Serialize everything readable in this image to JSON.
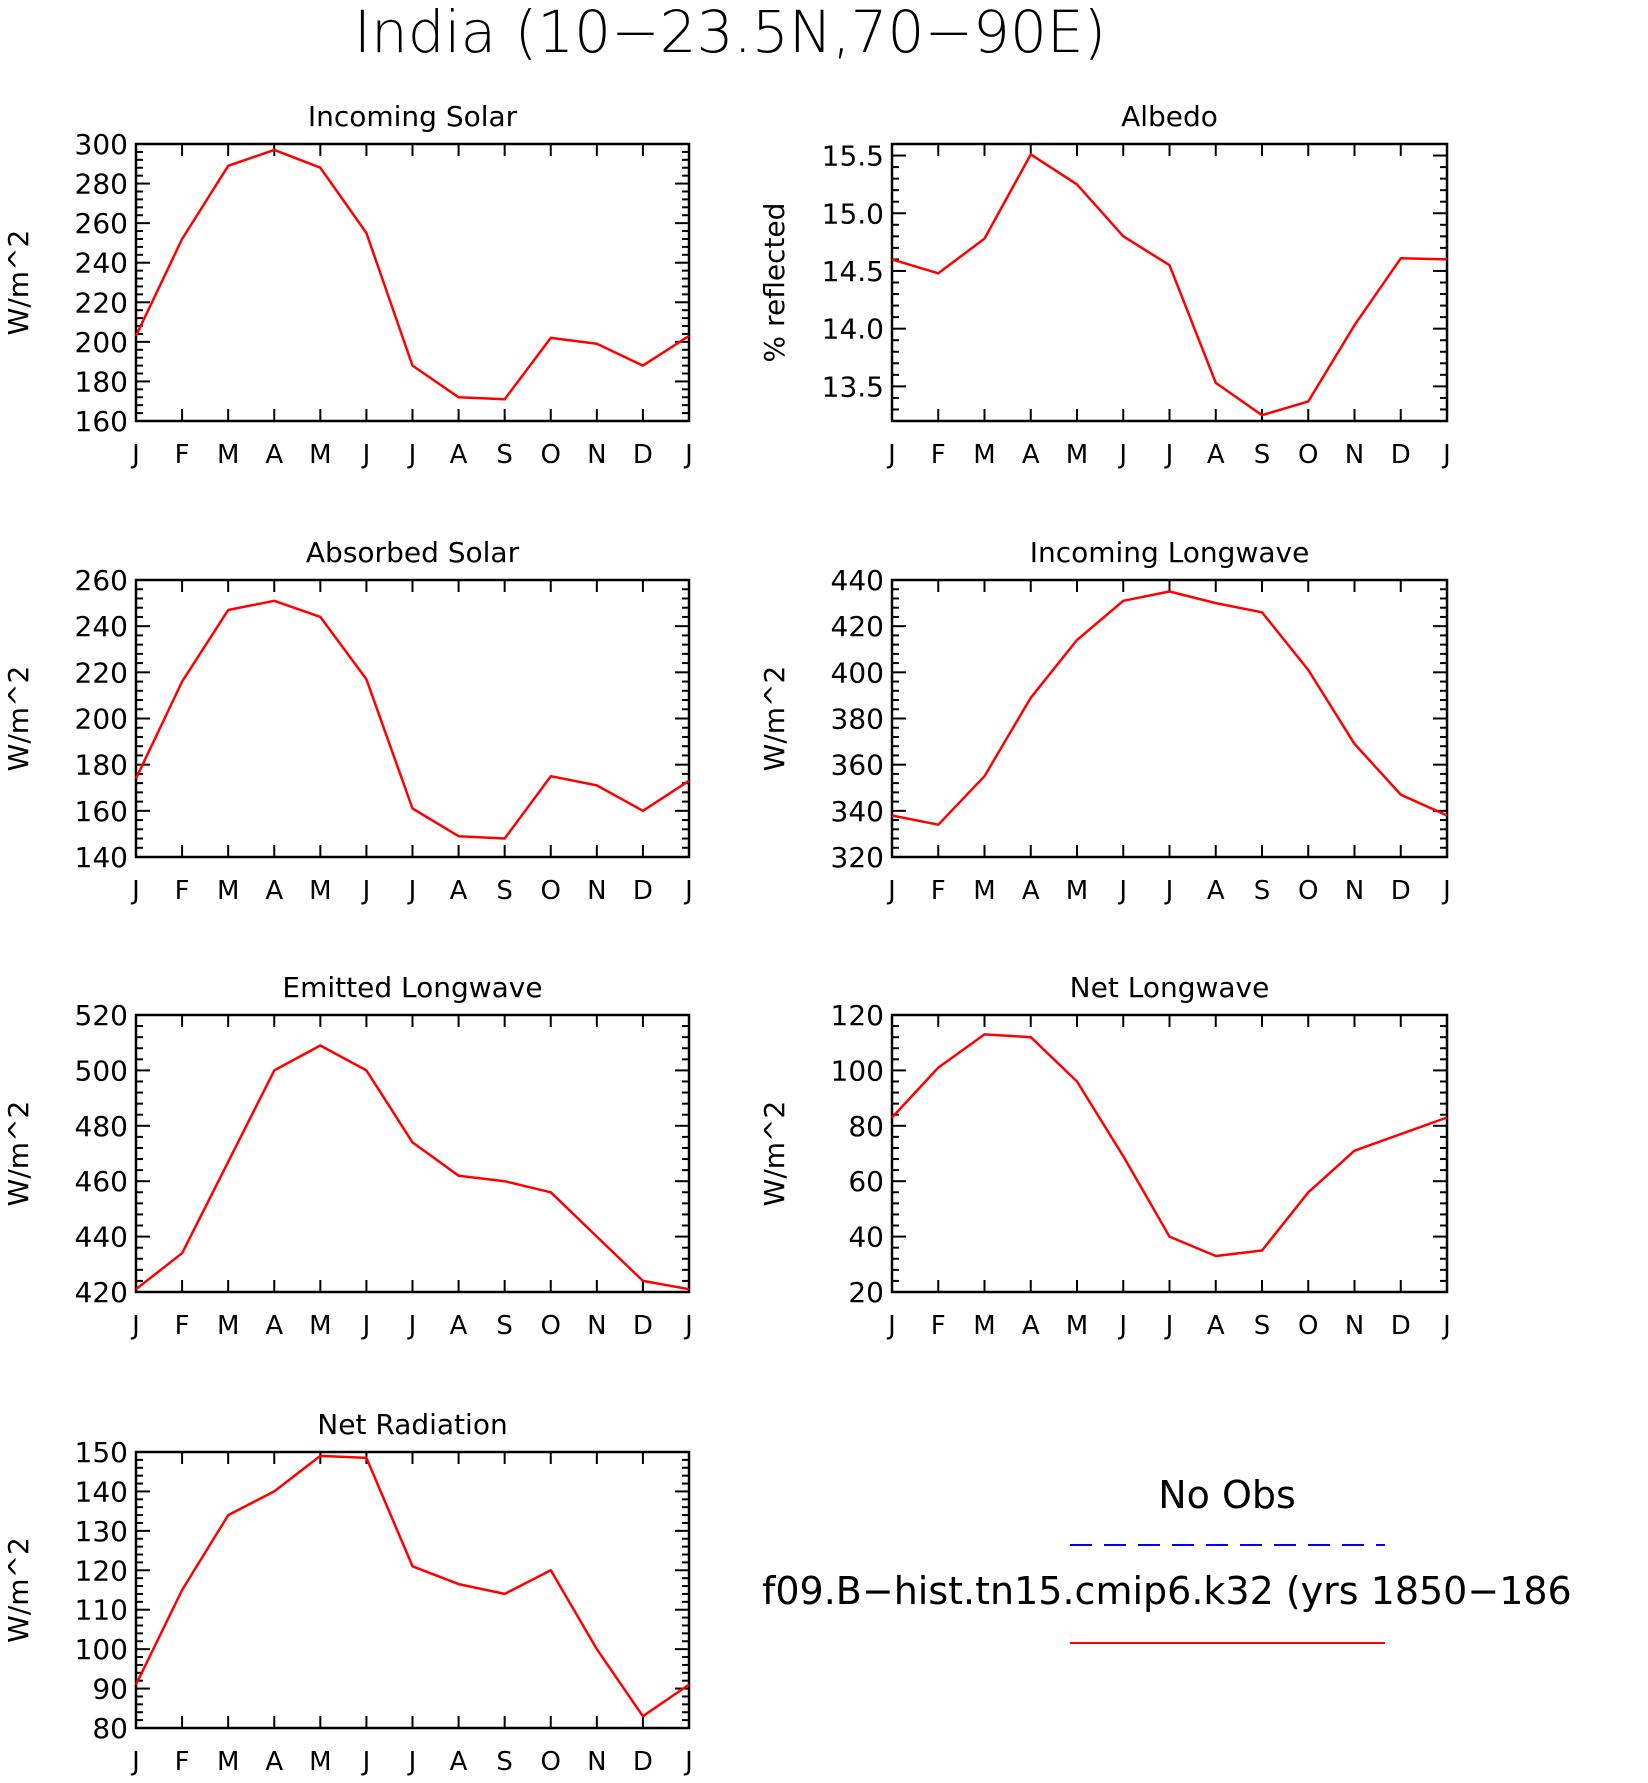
{
  "figure_title": "India (10−23.5N,70−90E)",
  "months": [
    "J",
    "F",
    "M",
    "A",
    "M",
    "J",
    "J",
    "A",
    "S",
    "O",
    "N",
    "D",
    "J"
  ],
  "colors": {
    "model": "#ff0000",
    "obs": "#0000ff",
    "axis": "#000000"
  },
  "legend": {
    "obs_label": "No Obs",
    "model_label": "f09.B−hist.tn15.cmip6.k32 (yrs 1850−186"
  },
  "chart_data": [
    {
      "type": "line",
      "title": "Incoming Solar",
      "ylabel": "W/m^2",
      "ylim": [
        160,
        300
      ],
      "yticks": [
        160,
        180,
        200,
        220,
        240,
        260,
        280,
        300
      ],
      "ytick_labels": [
        "160",
        "180",
        "200",
        "220",
        "240",
        "260",
        "280",
        "300"
      ],
      "x": [
        "J",
        "F",
        "M",
        "A",
        "M",
        "J",
        "J",
        "A",
        "S",
        "O",
        "N",
        "D",
        "J"
      ],
      "values": [
        203,
        252,
        289,
        297,
        288,
        255,
        188,
        172,
        171,
        202,
        199,
        188,
        203
      ]
    },
    {
      "type": "line",
      "title": "Albedo",
      "ylabel": "% reflected",
      "ylim": [
        13.2,
        15.6
      ],
      "yticks": [
        13.5,
        14.0,
        14.5,
        15.0,
        15.5
      ],
      "ytick_labels": [
        "13.5",
        "14.0",
        "14.5",
        "15.0",
        "15.5"
      ],
      "x": [
        "J",
        "F",
        "M",
        "A",
        "M",
        "J",
        "J",
        "A",
        "S",
        "O",
        "N",
        "D",
        "J"
      ],
      "values": [
        14.6,
        14.48,
        14.78,
        15.51,
        15.25,
        14.8,
        14.55,
        13.53,
        13.25,
        13.37,
        14.03,
        14.61,
        14.6
      ]
    },
    {
      "type": "line",
      "title": "Absorbed Solar",
      "ylabel": "W/m^2",
      "ylim": [
        140,
        260
      ],
      "yticks": [
        140,
        160,
        180,
        200,
        220,
        240,
        260
      ],
      "ytick_labels": [
        "140",
        "160",
        "180",
        "200",
        "220",
        "240",
        "260"
      ],
      "x": [
        "J",
        "F",
        "M",
        "A",
        "M",
        "J",
        "J",
        "A",
        "S",
        "O",
        "N",
        "D",
        "J"
      ],
      "values": [
        174,
        216,
        247,
        251,
        244,
        217,
        161,
        149,
        148,
        175,
        171,
        160,
        173
      ]
    },
    {
      "type": "line",
      "title": "Incoming Longwave",
      "ylabel": "W/m^2",
      "ylim": [
        320,
        440
      ],
      "yticks": [
        320,
        340,
        360,
        380,
        400,
        420,
        440
      ],
      "ytick_labels": [
        "320",
        "340",
        "360",
        "380",
        "400",
        "420",
        "440"
      ],
      "x": [
        "J",
        "F",
        "M",
        "A",
        "M",
        "J",
        "J",
        "A",
        "S",
        "O",
        "N",
        "D",
        "J"
      ],
      "values": [
        338,
        334,
        355,
        389,
        414,
        431,
        435,
        430,
        426,
        401,
        369,
        347,
        338
      ]
    },
    {
      "type": "line",
      "title": "Emitted Longwave",
      "ylabel": "W/m^2",
      "ylim": [
        420,
        520
      ],
      "yticks": [
        420,
        440,
        460,
        480,
        500,
        520
      ],
      "ytick_labels": [
        "420",
        "440",
        "460",
        "480",
        "500",
        "520"
      ],
      "x": [
        "J",
        "F",
        "M",
        "A",
        "M",
        "J",
        "J",
        "A",
        "S",
        "O",
        "N",
        "D",
        "J"
      ],
      "values": [
        421,
        434,
        467,
        500,
        509,
        500,
        474,
        462,
        460,
        456,
        440,
        424,
        421
      ]
    },
    {
      "type": "line",
      "title": "Net Longwave",
      "ylabel": "W/m^2",
      "ylim": [
        20,
        120
      ],
      "yticks": [
        20,
        40,
        60,
        80,
        100,
        120
      ],
      "ytick_labels": [
        "20",
        "40",
        "60",
        "80",
        "100",
        "120"
      ],
      "x": [
        "J",
        "F",
        "M",
        "A",
        "M",
        "J",
        "J",
        "A",
        "S",
        "O",
        "N",
        "D",
        "J"
      ],
      "values": [
        83,
        101,
        113,
        112,
        96,
        69,
        40,
        33,
        35,
        56,
        71,
        77,
        83
      ]
    },
    {
      "type": "line",
      "title": "Net Radiation",
      "ylabel": "W/m^2",
      "ylim": [
        80,
        150
      ],
      "yticks": [
        80,
        90,
        100,
        110,
        120,
        130,
        140,
        150
      ],
      "ytick_labels": [
        "80",
        "90",
        "100",
        "110",
        "120",
        "130",
        "140",
        "150"
      ],
      "x": [
        "J",
        "F",
        "M",
        "A",
        "M",
        "J",
        "J",
        "A",
        "S",
        "O",
        "N",
        "D",
        "J"
      ],
      "values": [
        91,
        115,
        134,
        140,
        149,
        148.5,
        121,
        116.5,
        114,
        120,
        100,
        83,
        91
      ]
    }
  ]
}
